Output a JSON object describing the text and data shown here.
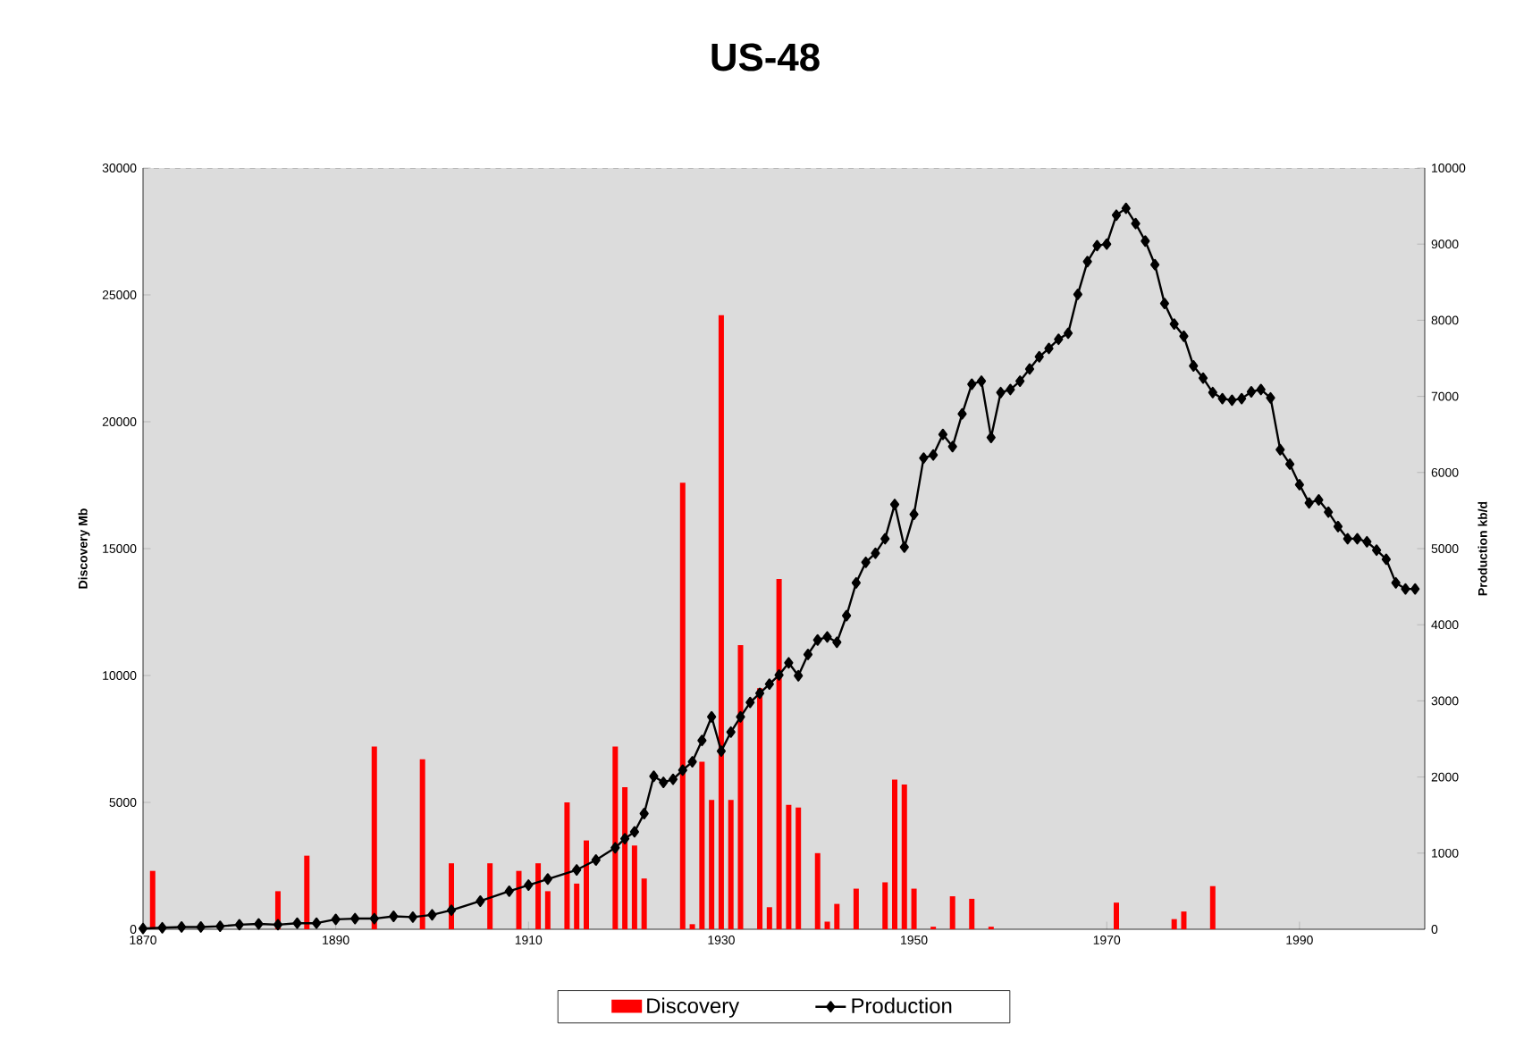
{
  "chart_data": {
    "type": "bar",
    "title": "US-48",
    "ylabel": "Discovery Mb",
    "y2label": "Production kb/d",
    "xlim": [
      1870,
      2003
    ],
    "xticks": [
      1870,
      1890,
      1910,
      1930,
      1950,
      1970,
      1990
    ],
    "ylim": [
      0,
      30000
    ],
    "yticks": [
      0,
      5000,
      10000,
      15000,
      20000,
      25000,
      30000
    ],
    "y2lim": [
      0,
      10000
    ],
    "y2ticks": [
      0,
      1000,
      2000,
      3000,
      4000,
      5000,
      6000,
      7000,
      8000,
      9000,
      10000
    ],
    "legend": "bottom",
    "series": [
      {
        "name": "Discovery",
        "color": "#ff0000",
        "x": [
          1871,
          1884,
          1887,
          1894,
          1899,
          1902,
          1906,
          1909,
          1911,
          1912,
          1914,
          1915,
          1916,
          1919,
          1920,
          1921,
          1922,
          1926,
          1927,
          1928,
          1929,
          1930,
          1931,
          1932,
          1934,
          1935,
          1936,
          1937,
          1938,
          1940,
          1941,
          1942,
          1944,
          1947,
          1948,
          1949,
          1950,
          1952,
          1954,
          1956,
          1958,
          1971,
          1977,
          1978,
          1981
        ],
        "values": [
          2300,
          1500,
          2900,
          7200,
          6700,
          2600,
          2600,
          2300,
          2600,
          1500,
          5000,
          1800,
          3500,
          7200,
          5600,
          3300,
          2000,
          17600,
          200,
          6600,
          5100,
          24200,
          5100,
          11200,
          9500,
          870,
          13800,
          4900,
          4800,
          3000,
          300,
          1000,
          1600,
          1850,
          5900,
          5700,
          1600,
          100,
          1300,
          1200,
          100,
          1050,
          400,
          700,
          1700
        ]
      },
      {
        "name": "Production",
        "type": "line",
        "axis": "y2",
        "color": "#000000",
        "marker": "diamond",
        "x": [
          1870,
          1872,
          1874,
          1876,
          1878,
          1880,
          1882,
          1884,
          1886,
          1888,
          1890,
          1892,
          1894,
          1896,
          1898,
          1900,
          1902,
          1905,
          1908,
          1910,
          1912,
          1915,
          1917,
          1919,
          1920,
          1921,
          1922,
          1923,
          1924,
          1925,
          1926,
          1927,
          1928,
          1929,
          1930,
          1931,
          1932,
          1933,
          1934,
          1935,
          1936,
          1937,
          1938,
          1939,
          1940,
          1941,
          1942,
          1943,
          1944,
          1945,
          1946,
          1947,
          1948,
          1949,
          1950,
          1951,
          1952,
          1953,
          1954,
          1955,
          1956,
          1957,
          1958,
          1959,
          1960,
          1961,
          1962,
          1963,
          1964,
          1965,
          1966,
          1967,
          1968,
          1969,
          1970,
          1971,
          1972,
          1973,
          1974,
          1975,
          1976,
          1977,
          1978,
          1979,
          1980,
          1981,
          1982,
          1983,
          1984,
          1985,
          1986,
          1987,
          1988,
          1989,
          1990,
          1991,
          1992,
          1993,
          1994,
          1995,
          1996,
          1997,
          1998,
          1999,
          2000,
          2001,
          2002
        ],
        "values": [
          10,
          20,
          30,
          30,
          40,
          60,
          70,
          60,
          80,
          80,
          130,
          140,
          140,
          170,
          160,
          190,
          250,
          370,
          500,
          580,
          660,
          780,
          910,
          1070,
          1190,
          1280,
          1520,
          2010,
          1930,
          1970,
          2090,
          2200,
          2480,
          2790,
          2340,
          2590,
          2790,
          2980,
          3100,
          3220,
          3340,
          3500,
          3330,
          3610,
          3800,
          3840,
          3770,
          4120,
          4550,
          4820,
          4940,
          5130,
          5580,
          5020,
          5450,
          6190,
          6230,
          6500,
          6340,
          6770,
          7160,
          7200,
          6460,
          7050,
          7090,
          7200,
          7360,
          7520,
          7630,
          7750,
          7830,
          8340,
          8770,
          8980,
          9000,
          9380,
          9470,
          9270,
          9040,
          8730,
          8220,
          7950,
          7790,
          7400,
          7240,
          7050,
          6970,
          6950,
          6970,
          7060,
          7090,
          6980,
          6300,
          6110,
          5840,
          5600,
          5640,
          5480,
          5290,
          5130,
          5130,
          5090,
          4980,
          4860,
          4550,
          4470,
          4470
        ]
      }
    ]
  }
}
